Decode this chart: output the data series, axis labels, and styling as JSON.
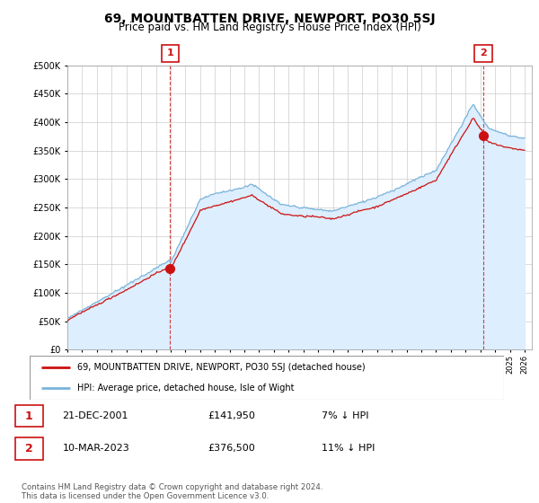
{
  "title": "69, MOUNTBATTEN DRIVE, NEWPORT, PO30 5SJ",
  "subtitle": "Price paid vs. HM Land Registry's House Price Index (HPI)",
  "title_fontsize": 10,
  "subtitle_fontsize": 8.5,
  "hpi_color": "#7ab3d9",
  "hpi_fill_color": "#ddeeff",
  "price_color": "#cc1111",
  "background_color": "#ffffff",
  "grid_color": "#cccccc",
  "ylim": [
    0,
    500000
  ],
  "yticks": [
    0,
    50000,
    100000,
    150000,
    200000,
    250000,
    300000,
    350000,
    400000,
    450000,
    500000
  ],
  "sale1_year": 2001.97,
  "sale1_price": 141950,
  "sale1_label": "1",
  "sale2_year": 2023.19,
  "sale2_price": 376500,
  "sale2_label": "2",
  "legend_line1": "69, MOUNTBATTEN DRIVE, NEWPORT, PO30 5SJ (detached house)",
  "legend_line2": "HPI: Average price, detached house, Isle of Wight",
  "table_row1_num": "1",
  "table_row1_date": "21-DEC-2001",
  "table_row1_price": "£141,950",
  "table_row1_hpi": "7% ↓ HPI",
  "table_row2_num": "2",
  "table_row2_date": "10-MAR-2023",
  "table_row2_price": "£376,500",
  "table_row2_hpi": "11% ↓ HPI",
  "footnote": "Contains HM Land Registry data © Crown copyright and database right 2024.\nThis data is licensed under the Open Government Licence v3.0."
}
